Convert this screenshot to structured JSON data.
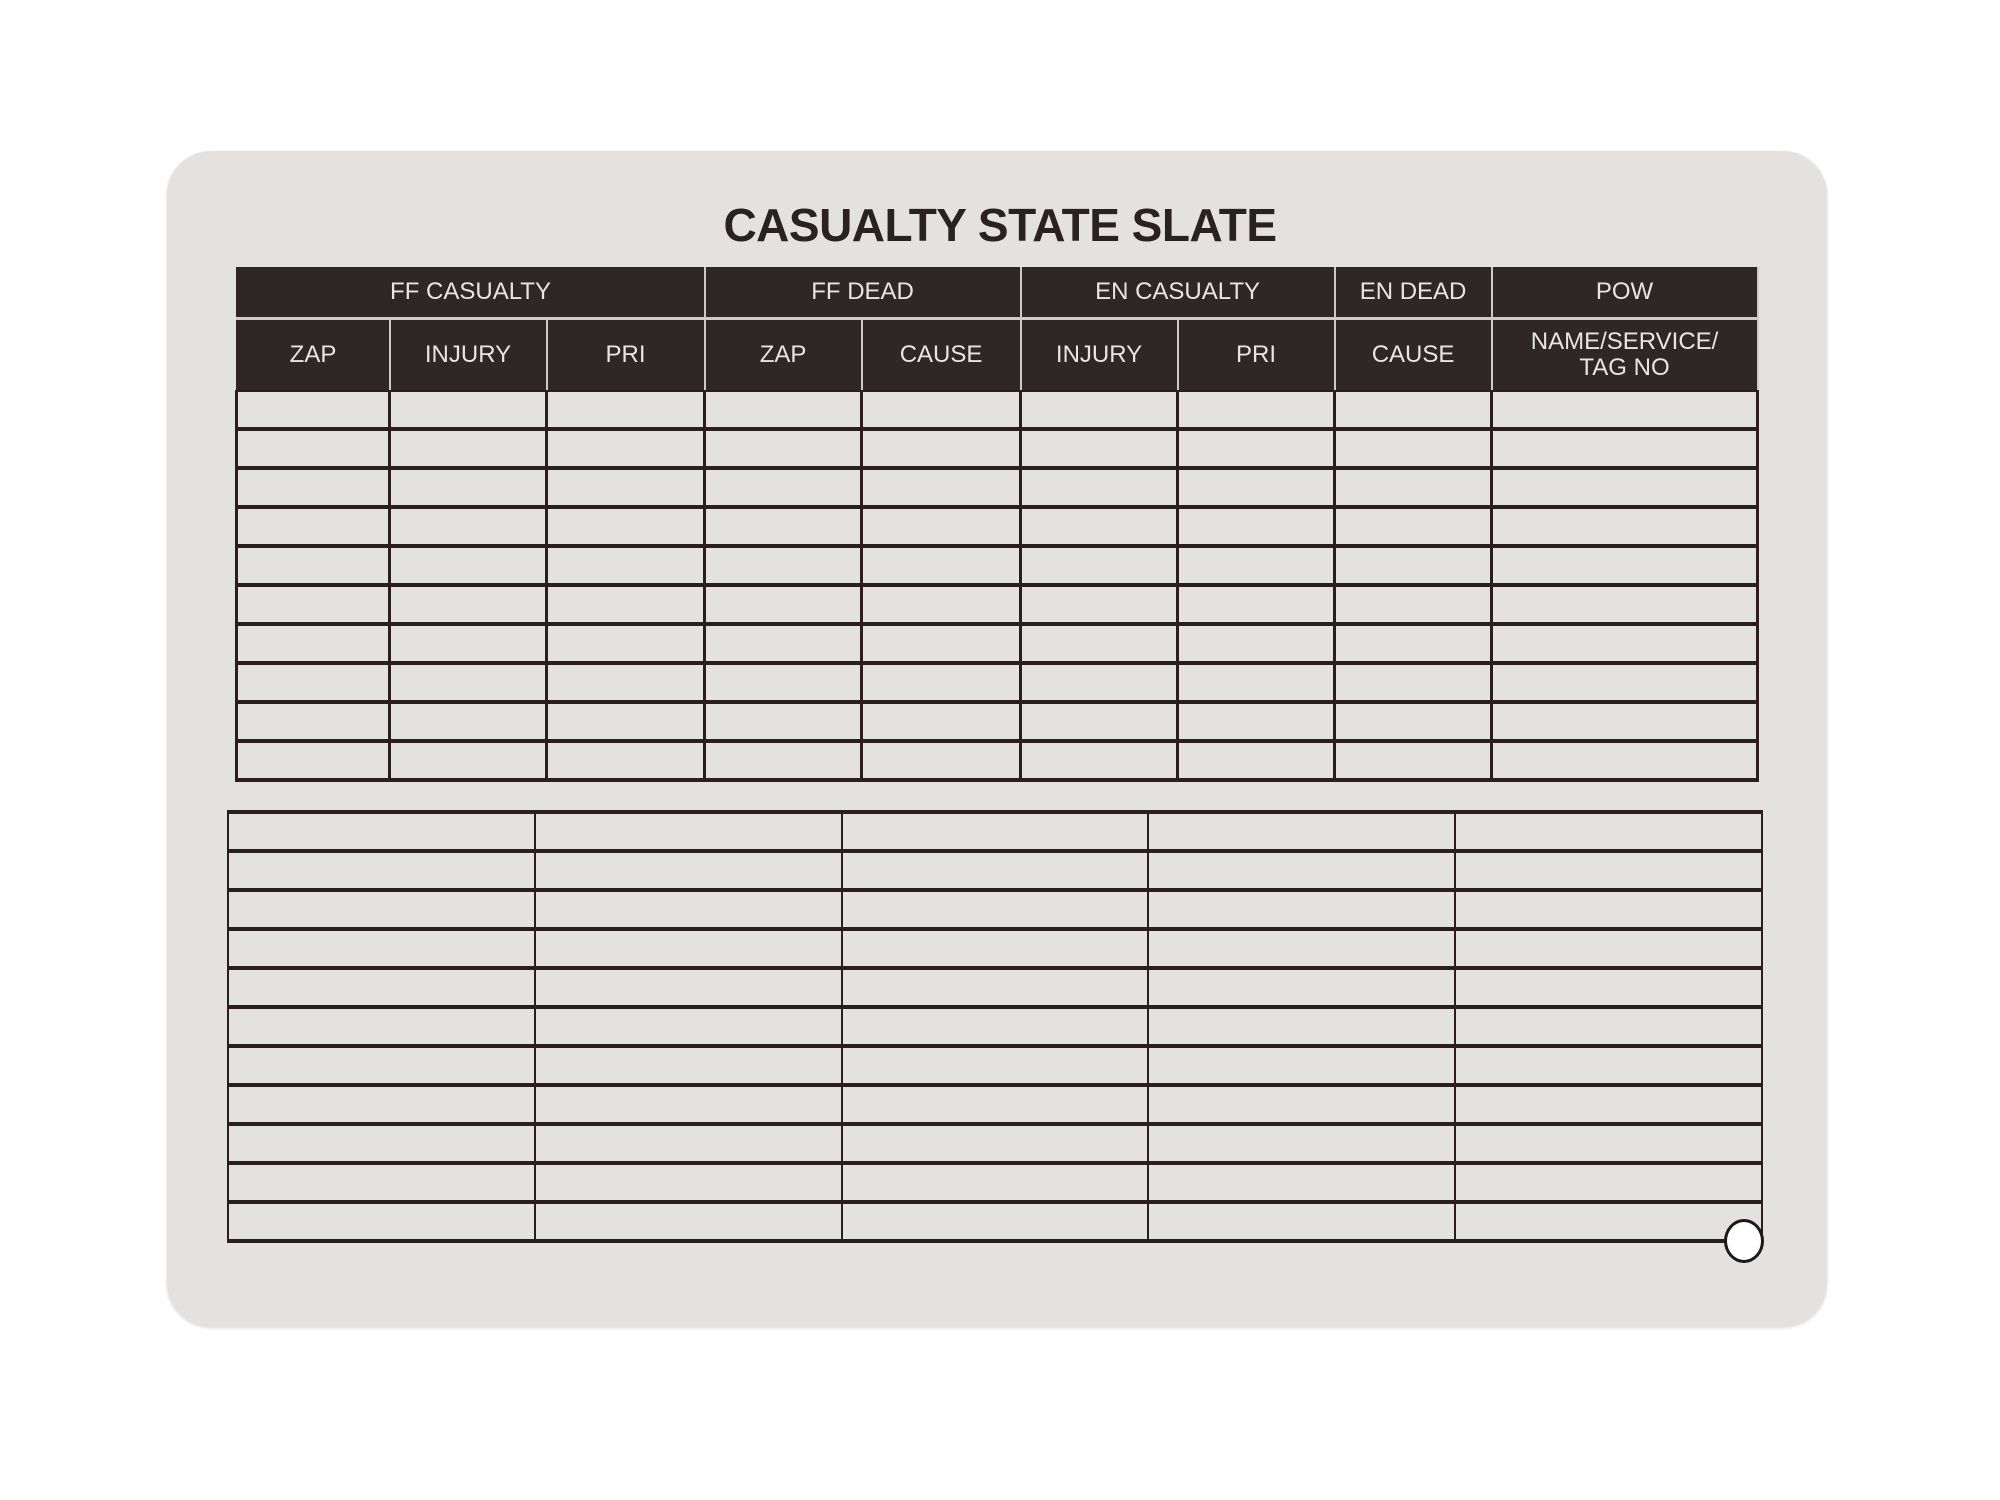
{
  "title": "CASUALTY STATE SLATE",
  "upper_table": {
    "group_headers": [
      {
        "label": "FF CASUALTY",
        "span": 3
      },
      {
        "label": "FF DEAD",
        "span": 2
      },
      {
        "label": "EN CASUALTY",
        "span": 2
      },
      {
        "label": "EN DEAD",
        "span": 1
      },
      {
        "label": "POW",
        "span": 1
      }
    ],
    "column_headers": [
      "ZAP",
      "INJURY",
      "PRI",
      "ZAP",
      "CAUSE",
      "INJURY",
      "PRI",
      "CAUSE",
      "NAME/SERVICE/\nTAG NO"
    ]
  },
  "colors": {
    "card": "#e4e2e1",
    "header_fill": "#2f2727",
    "rule": "#2a1e1e"
  }
}
